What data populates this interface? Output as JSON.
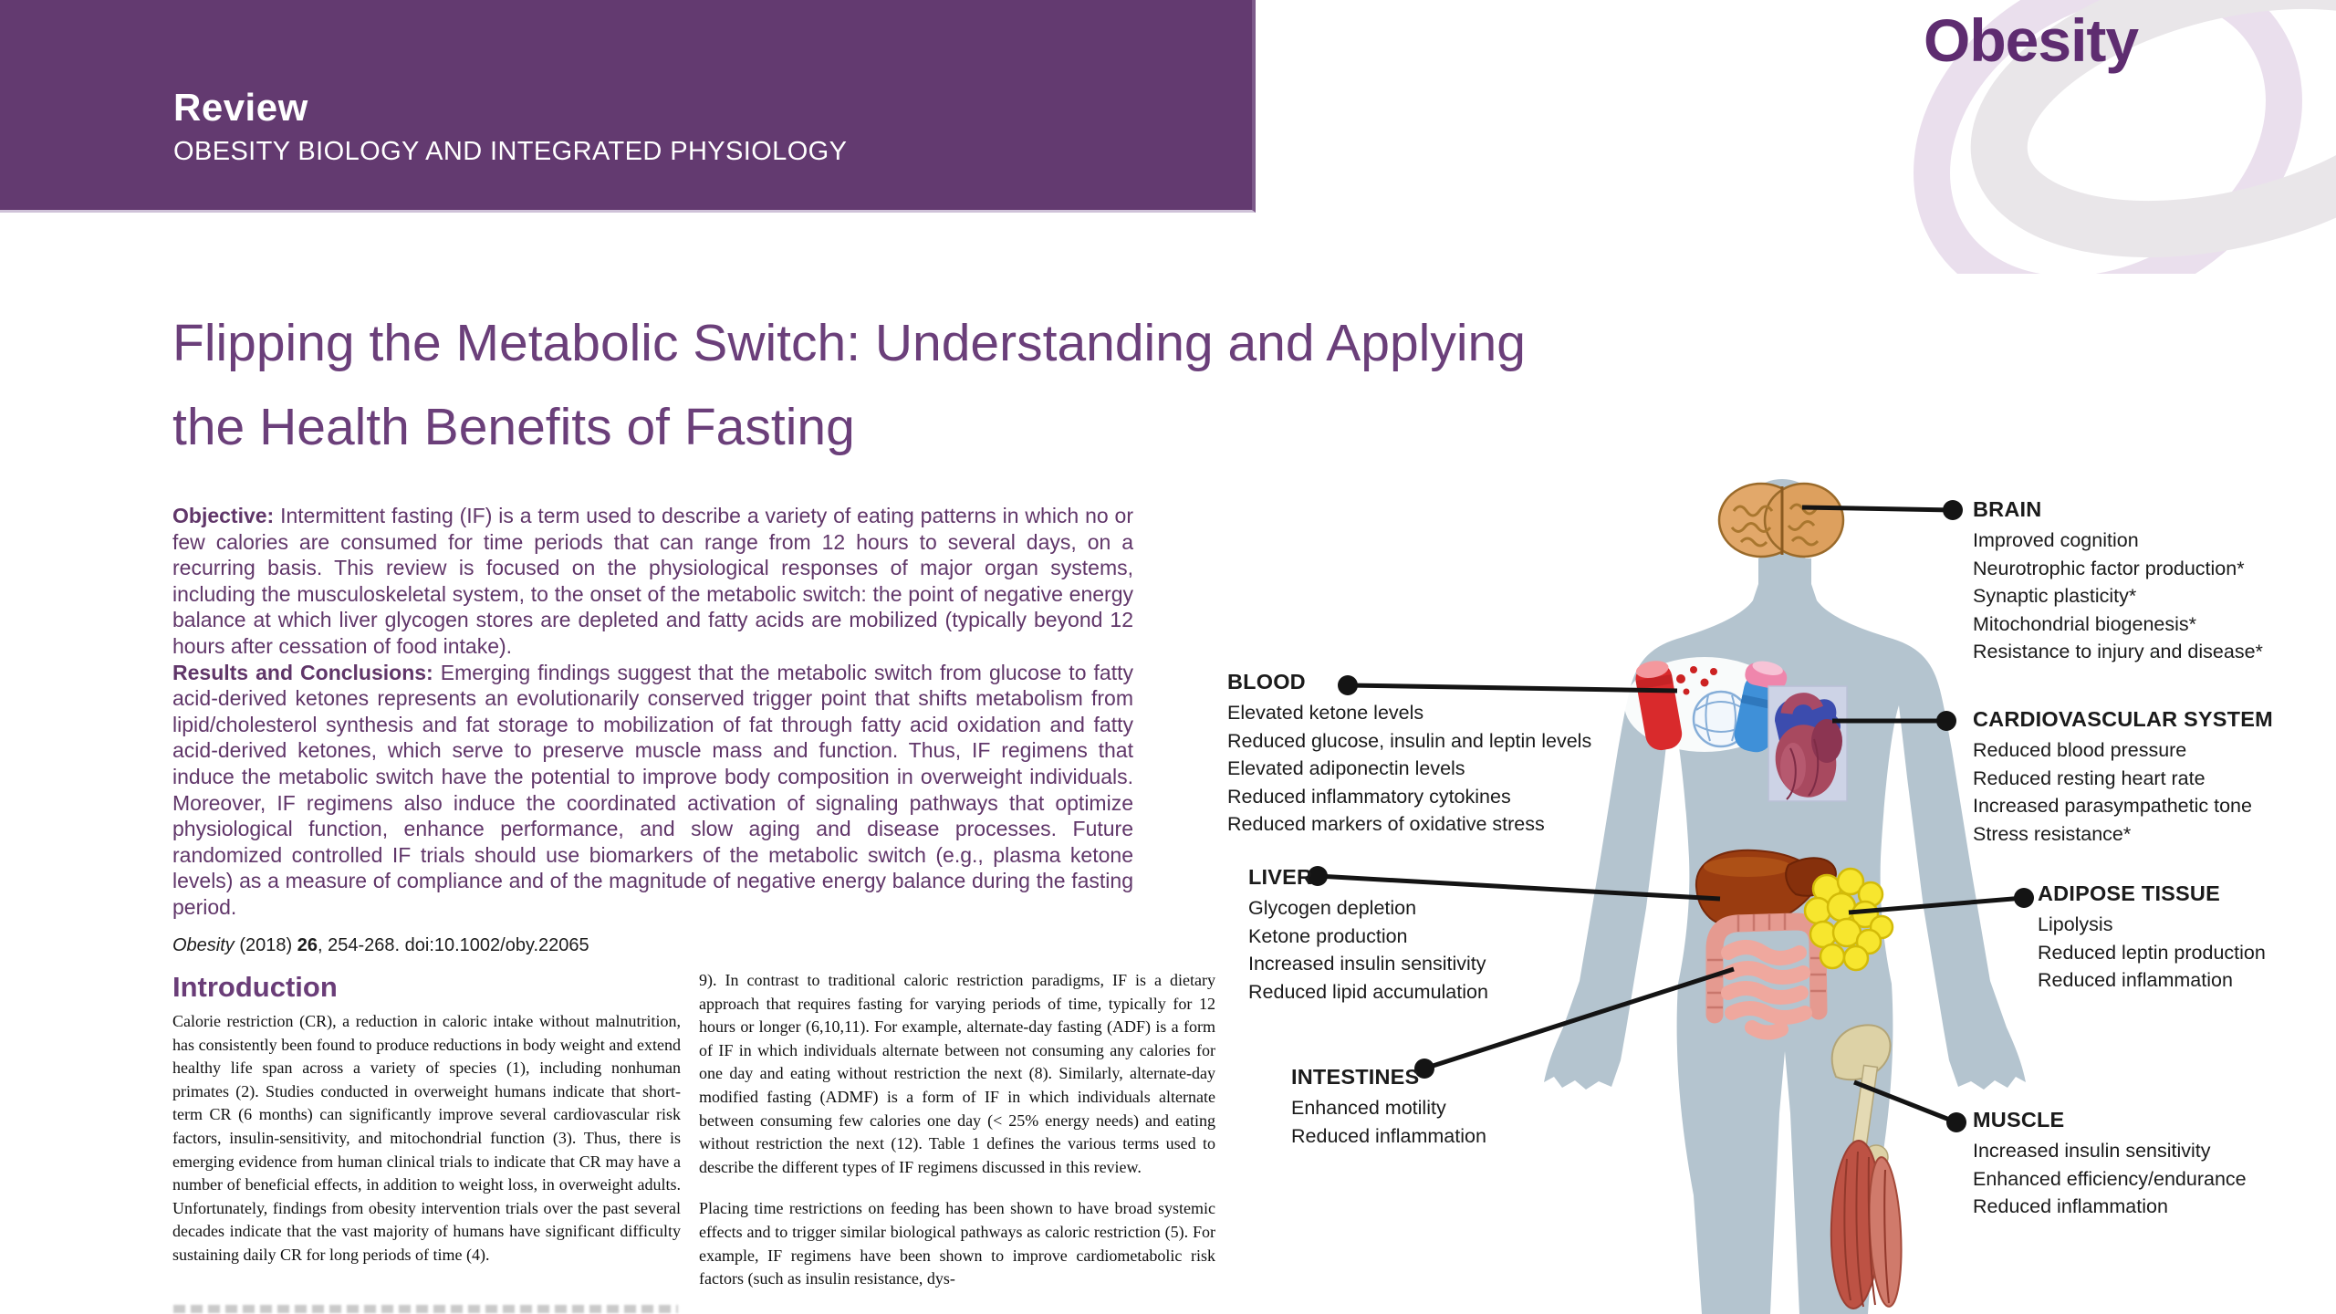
{
  "banner": {
    "kicker": "Review",
    "subtitle": "OBESITY BIOLOGY AND INTEGRATED PHYSIOLOGY"
  },
  "journal": {
    "logo_text": "Obesity"
  },
  "title": {
    "line1": "Flipping the Metabolic Switch: Understanding and Applying",
    "line2": "the Health Benefits of Fasting"
  },
  "abstract": {
    "objective_label": "Objective:",
    "objective_text": " Intermittent fasting (IF) is a term used to describe a variety of eating patterns in which no or few calories are consumed for time periods that can range from 12 hours to several days, on a recurring basis. This review is focused on the physiological responses of major organ systems, including the musculoskeletal system, to the onset of the metabolic switch: the point of negative energy balance at which liver glycogen stores are depleted and fatty acids are mobilized (typically beyond 12 hours after cessation of food intake).",
    "results_label": "Results and Conclusions:",
    "results_text": " Emerging findings suggest that the metabolic switch from glucose to fatty acid-derived ketones represents an evolutionarily conserved trigger point that shifts metabolism from lipid/cholesterol synthesis and fat storage to mobilization of fat through fatty acid oxidation and fatty acid-derived ketones, which serve to preserve muscle mass and function. Thus, IF regimens that induce the metabolic switch have the potential to improve body composition in overweight individuals. Moreover, IF regimens also induce the coordinated activation of signaling pathways that optimize physiological function, enhance performance, and slow aging and disease processes. Future randomized controlled IF trials should use biomarkers of the metabolic switch (e.g., plasma ketone levels) as a measure of compliance and of the magnitude of negative energy balance during the fasting period."
  },
  "citation": {
    "journal": "Obesity",
    "middle": " (2018) ",
    "volume": "26",
    "tail": ", 254-268. doi:10.1002/oby.22065"
  },
  "introduction": {
    "heading": "Introduction",
    "column1_paragraph": "Calorie restriction (CR), a reduction in caloric intake without malnutrition, has consistently been found to produce reductions in body weight and extend healthy life span across a variety of species (1), including nonhuman primates (2). Studies conducted in overweight humans indicate that short-term CR (6 months) can significantly improve several cardiovascular risk factors, insulin-sensitivity, and mitochondrial function (3). Thus, there is emerging evidence from human clinical trials to indicate that CR may have a number of beneficial effects, in addition to weight loss, in overweight adults. Unfortunately, findings from obesity intervention trials over the past several decades indicate that the vast majority of humans have significant difficulty sustaining daily CR for long periods of time (4).",
    "column2_paragraph1": "9). In contrast to traditional caloric restriction paradigms, IF is a dietary approach that requires fasting for varying periods of time, typically for 12 hours or longer (6,10,11). For example, alternate-day fasting (ADF) is a form of IF in which individuals alternate between not consuming any calories for one day and eating without restriction the next (8). Similarly, alternate-day modified fasting (ADMF) is a form of IF in which individuals alternate between consuming few calories one day (< 25% energy needs) and eating without restriction the next (12). Table 1 defines the various terms used to describe the different types of IF regimens discussed in this review.",
    "column2_paragraph2": "Placing time restrictions on feeding has been shown to have broad systemic effects and to trigger similar biological pathways as caloric restriction (5). For example, IF regimens have been shown to improve cardiometabolic risk factors (such as insulin resistance, dys-"
  },
  "figure": {
    "callouts": [
      {
        "id": "brain",
        "label": "BRAIN",
        "items": [
          "Improved cognition",
          "Neurotrophic factor production*",
          "Synaptic plasticity*",
          "Mitochondrial biogenesis*",
          "Resistance to injury and disease*"
        ]
      },
      {
        "id": "cardiovascular",
        "label": "CARDIOVASCULAR SYSTEM",
        "items": [
          "Reduced blood pressure",
          "Reduced resting heart rate",
          "Increased parasympathetic tone",
          "Stress resistance*"
        ]
      },
      {
        "id": "adipose",
        "label": "ADIPOSE TISSUE",
        "items": [
          "Lipolysis",
          "Reduced leptin production",
          "Reduced inflammation"
        ]
      },
      {
        "id": "muscle",
        "label": "MUSCLE",
        "items": [
          "Increased insulin sensitivity",
          "Enhanced efficiency/endurance",
          "Reduced inflammation"
        ]
      },
      {
        "id": "blood",
        "label": "BLOOD",
        "items": [
          "Elevated ketone levels",
          "Reduced glucose, insulin and leptin levels",
          "Elevated adiponectin levels",
          "Reduced inflammatory cytokines",
          "Reduced markers of oxidative stress"
        ]
      },
      {
        "id": "liver",
        "label": "LIVER",
        "items": [
          "Glycogen depletion",
          "Ketone production",
          "Increased insulin sensitivity",
          "Reduced lipid accumulation"
        ]
      },
      {
        "id": "intestines",
        "label": "INTESTINES",
        "items": [
          "Enhanced motility",
          "Reduced inflammation"
        ]
      }
    ]
  },
  "colors": {
    "banner_purple": "#633a70",
    "title_purple": "#6b3f7a",
    "logo_purple": "#5e2c70",
    "silhouette_blue": "#b4c4cf",
    "callout_line_black": "#141414"
  }
}
